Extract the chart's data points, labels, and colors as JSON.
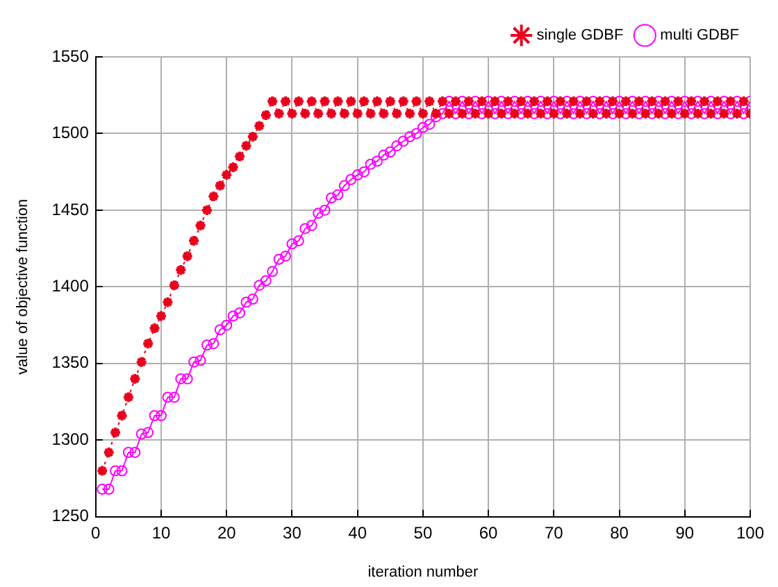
{
  "chart_data": {
    "type": "line",
    "xlabel": "iteration number",
    "ylabel": "value of objective function",
    "x": [
      1,
      2,
      3,
      4,
      5,
      6,
      7,
      8,
      9,
      10,
      11,
      12,
      13,
      14,
      15,
      16,
      17,
      18,
      19,
      20,
      21,
      22,
      23,
      24,
      25,
      26,
      27,
      28,
      29,
      30,
      31,
      32,
      33,
      34,
      35,
      36,
      37,
      38,
      39,
      40,
      41,
      42,
      43,
      44,
      45,
      46,
      47,
      48,
      49,
      50,
      51,
      52,
      53,
      54,
      55,
      56,
      57,
      58,
      59,
      60,
      61,
      62,
      63,
      64,
      65,
      66,
      67,
      68,
      69,
      70,
      71,
      72,
      73,
      74,
      75,
      76,
      77,
      78,
      79,
      80,
      81,
      82,
      83,
      84,
      85,
      86,
      87,
      88,
      89,
      90,
      91,
      92,
      93,
      94,
      95,
      96,
      97,
      98,
      99,
      100
    ],
    "series": [
      {
        "name": "single GDBF",
        "color": "#e8001c",
        "marker": "cross",
        "line_style": "dotted",
        "values": [
          1280,
          1292,
          1305,
          1316,
          1328,
          1340,
          1351,
          1363,
          1373,
          1381,
          1390,
          1401,
          1411,
          1420,
          1430,
          1440,
          1450,
          1459,
          1466,
          1473,
          1478,
          1485,
          1492,
          1498,
          1505,
          1512,
          1521,
          1513,
          1521,
          1513,
          1521,
          1513,
          1521,
          1513,
          1521,
          1513,
          1521,
          1513,
          1521,
          1513,
          1521,
          1513,
          1521,
          1513,
          1521,
          1513,
          1521,
          1513,
          1521,
          1513,
          1521,
          1513,
          1521,
          1513,
          1521,
          1513,
          1521,
          1513,
          1521,
          1513,
          1521,
          1513,
          1521,
          1513,
          1521,
          1513,
          1521,
          1513,
          1521,
          1513,
          1521,
          1513,
          1521,
          1513,
          1521,
          1513,
          1521,
          1513,
          1521,
          1513,
          1521,
          1513,
          1521,
          1513,
          1521,
          1513,
          1521,
          1513,
          1521,
          1513,
          1521,
          1513,
          1521,
          1513,
          1521,
          1513,
          1521,
          1513,
          1521,
          1513
        ]
      },
      {
        "name": "multi GDBF",
        "color": "#ff00ff",
        "marker": "circle",
        "line_style": "solid",
        "values": [
          1268,
          1268,
          1280,
          1280,
          1292,
          1292,
          1304,
          1305,
          1316,
          1316,
          1328,
          1328,
          1340,
          1340,
          1351,
          1352,
          1362,
          1363,
          1372,
          1375,
          1381,
          1383,
          1390,
          1392,
          1401,
          1404,
          1410,
          1418,
          1420,
          1428,
          1430,
          1438,
          1440,
          1448,
          1450,
          1458,
          1460,
          1466,
          1470,
          1473,
          1475,
          1480,
          1482,
          1486,
          1488,
          1492,
          1495,
          1498,
          1500,
          1504,
          1506,
          1511,
          1513,
          1521,
          1513,
          1521,
          1513,
          1521,
          1513,
          1521,
          1513,
          1521,
          1513,
          1521,
          1513,
          1521,
          1513,
          1521,
          1513,
          1521,
          1513,
          1521,
          1513,
          1521,
          1513,
          1521,
          1513,
          1521,
          1513,
          1521,
          1513,
          1521,
          1513,
          1521,
          1513,
          1521,
          1513,
          1521,
          1513,
          1521,
          1513,
          1521,
          1513,
          1521,
          1513,
          1521,
          1513,
          1521,
          1513,
          1521
        ]
      }
    ],
    "xlim": [
      0,
      100
    ],
    "xticks": [
      0,
      10,
      20,
      30,
      40,
      50,
      60,
      70,
      80,
      90,
      100
    ],
    "ylim": [
      1250,
      1550
    ],
    "yticks": [
      1250,
      1300,
      1350,
      1400,
      1450,
      1500,
      1550
    ],
    "grid": true,
    "legend": "top right"
  }
}
